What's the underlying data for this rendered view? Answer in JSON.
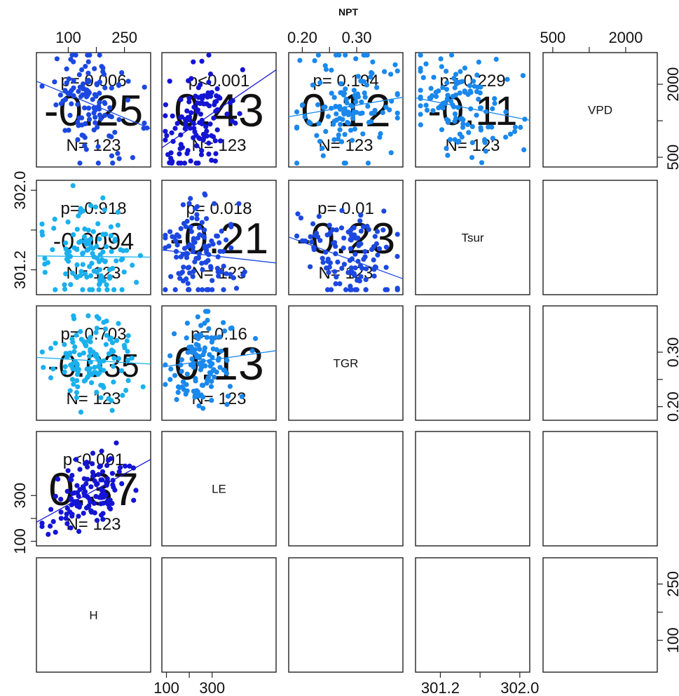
{
  "chart_data": {
    "type": "scatter",
    "title": "NPT",
    "variables": [
      "VPD",
      "Tsur",
      "TGR",
      "LE",
      "H"
    ],
    "ranges": {
      "VPD": [
        300,
        2650
      ],
      "Tsur": [
        300.95,
        302.1
      ],
      "TGR": [
        0.175,
        0.385
      ],
      "LE": [
        80,
        580
      ],
      "H": [
        15,
        320
      ]
    },
    "ticks": {
      "VPD": {
        "values": [
          500,
          2000
        ],
        "labels": [
          "500",
          "2000"
        ]
      },
      "Tsur": {
        "values": [
          301.2,
          302.0
        ],
        "labels": [
          "301.2",
          "302.0"
        ]
      },
      "TGR": {
        "values": [
          0.2,
          0.3
        ],
        "labels": [
          "0.20",
          "0.30"
        ]
      },
      "LE": {
        "values": [
          100,
          300
        ],
        "labels": [
          "100",
          "300"
        ]
      },
      "H": {
        "values": [
          100,
          250
        ],
        "labels": [
          "100",
          "250"
        ]
      }
    },
    "correlations": [
      {
        "vars": [
          "H",
          "VPD"
        ],
        "p": "p= 0.006",
        "r": "-0.25",
        "n": "N= 123",
        "color": "#1c3be0",
        "size": 62
      },
      {
        "vars": [
          "LE",
          "VPD"
        ],
        "p": "p<0.001",
        "r": "0.43",
        "n": "N= 123",
        "color": "#1212d8",
        "size": 66
      },
      {
        "vars": [
          "TGR",
          "VPD"
        ],
        "p": "p= 0.194",
        "r": "0.12",
        "n": "N= 123",
        "color": "#1a88ec",
        "size": 66
      },
      {
        "vars": [
          "Tsur",
          "VPD"
        ],
        "p": "p= 0.229",
        "r": "-0.11",
        "n": "N= 123",
        "color": "#1a88ec",
        "size": 58
      },
      {
        "vars": [
          "H",
          "Tsur"
        ],
        "p": "p= 0.918",
        "r": "-0.0094",
        "n": "N= 123",
        "color": "#1ab0ee",
        "size": 34
      },
      {
        "vars": [
          "LE",
          "Tsur"
        ],
        "p": "p= 0.018",
        "r": "-0.21",
        "n": "N= 123",
        "color": "#1c55e6",
        "size": 62
      },
      {
        "vars": [
          "TGR",
          "Tsur"
        ],
        "p": "p= 0.01",
        "r": "-0.23",
        "n": "N= 123",
        "color": "#1c4fe4",
        "size": 62
      },
      {
        "vars": [
          "H",
          "TGR"
        ],
        "p": "p= 0.703",
        "r": "-0.035",
        "n": "N= 123",
        "color": "#1ab0ee",
        "size": 46
      },
      {
        "vars": [
          "LE",
          "TGR"
        ],
        "p": "p= 0.16",
        "r": "0.13",
        "n": "N= 123",
        "color": "#1a88ec",
        "size": 66
      },
      {
        "vars": [
          "H",
          "LE"
        ],
        "p": "p<0.001",
        "r": "0.37",
        "n": "N= 123",
        "color": "#1212d8",
        "size": 66
      }
    ],
    "point_colors": {
      "H-VPD": "#1c48e0",
      "LE-VPD": "#1414d4",
      "TGR-VPD": "#1a88ec",
      "Tsur-VPD": "#1a88ec",
      "H-Tsur": "#1ab0ee",
      "LE-Tsur": "#1c48e0",
      "TGR-Tsur": "#1c48e0",
      "H-TGR": "#1ab0ee",
      "LE-TGR": "#1a88ec",
      "H-LE": "#1414d4"
    },
    "point_count": 123,
    "regression": {
      "H-VPD": {
        "slope": -3.2,
        "intercept": 2110
      },
      "LE-VPD": {
        "slope": 3.2,
        "intercept": 440
      },
      "TGR-VPD": {
        "slope": 1900,
        "intercept": 1000
      },
      "Tsur-VPD": {
        "slope": -400,
        "intercept": 122100
      },
      "H-Tsur": {
        "slope": -4e-05,
        "intercept": 301.34
      },
      "LE-Tsur": {
        "slope": -0.00026,
        "intercept": 301.42
      },
      "TGR-Tsur": {
        "slope": -2.0,
        "intercept": 301.88
      },
      "H-TGR": {
        "slope": -4e-05,
        "intercept": 0.291
      },
      "LE-TGR": {
        "slope": 6e-05,
        "intercept": 0.268
      },
      "H-LE": {
        "slope": 0.9,
        "intercept": 170
      }
    },
    "grid": false,
    "legend": "none"
  }
}
